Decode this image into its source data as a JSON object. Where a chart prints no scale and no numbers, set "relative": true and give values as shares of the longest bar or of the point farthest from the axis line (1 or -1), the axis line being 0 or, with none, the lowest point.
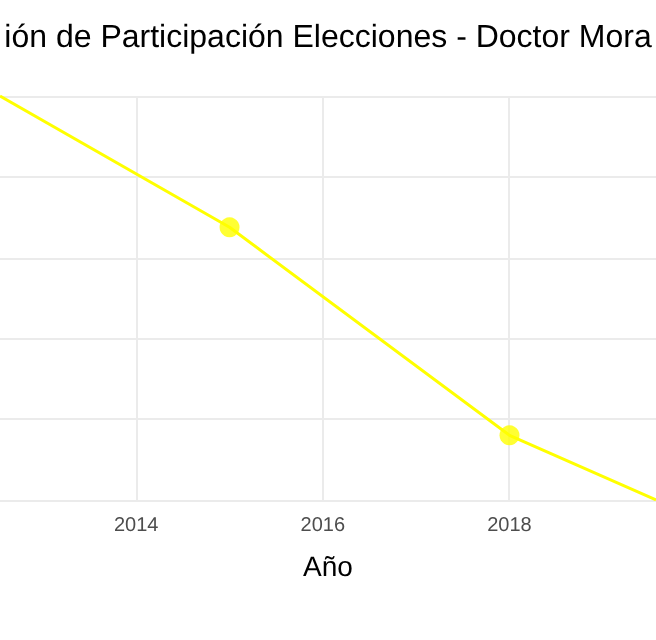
{
  "chart_data": {
    "type": "line",
    "title": "ión de Participación Elecciones - Doctor Mora",
    "xlabel": "Año",
    "relative": true,
    "xlim": [
      2012.54,
      2019.57
    ],
    "xticks": [
      2014,
      2016,
      2018
    ],
    "grid": true,
    "series": [
      {
        "color": "#ffff00",
        "x": [
          2012.54,
          2015,
          2018,
          2019.57
        ],
        "values": [
          1,
          0.675,
          0.16,
          0
        ],
        "marker": "none"
      },
      {
        "type": "scatter",
        "color": "#ffff00",
        "x": [
          2015,
          2018
        ],
        "values": [
          0.675,
          0.16
        ],
        "marker": "circle"
      }
    ]
  }
}
